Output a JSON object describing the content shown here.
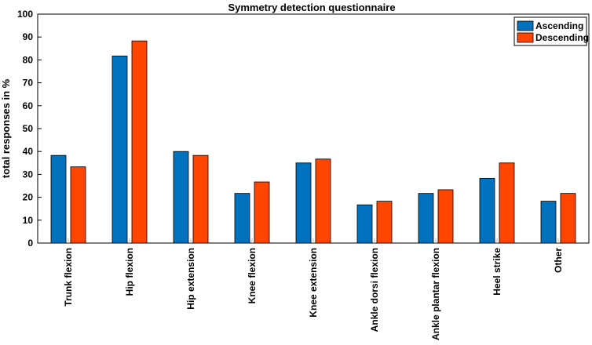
{
  "chart_data": {
    "type": "bar",
    "title": "Symmetry detection questionnaire",
    "xlabel": "",
    "ylabel": "total responses in %",
    "ylim": [
      0,
      100
    ],
    "yticks": [
      "0",
      "10",
      "20",
      "30",
      "40",
      "50",
      "60",
      "70",
      "80",
      "90",
      "100"
    ],
    "categories": [
      "Trunk flexion",
      "Hip flexion",
      "Hip extension",
      "Knee flexion",
      "Knee extension",
      "Ankle dorsi flexion",
      "Ankle plantar flexion",
      "Heel strike",
      "Other"
    ],
    "series": [
      {
        "name": "Ascending",
        "color": "#0072BD",
        "values": [
          38.3,
          81.7,
          40.0,
          21.7,
          35.0,
          16.7,
          21.7,
          28.3,
          18.3
        ]
      },
      {
        "name": "Descending",
        "color": "#FF4500",
        "values": [
          33.3,
          88.3,
          38.3,
          26.7,
          36.7,
          18.3,
          23.3,
          35.0,
          21.7
        ]
      }
    ],
    "legend_position": "top-right",
    "grid": false
  }
}
